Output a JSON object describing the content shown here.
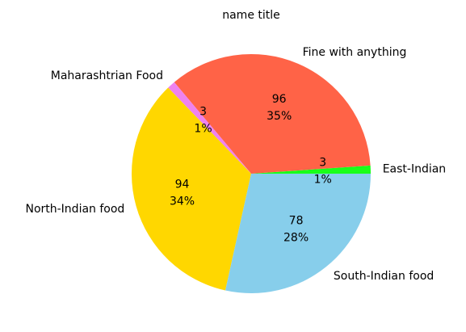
{
  "chart_data": {
    "type": "pie",
    "title": "name title",
    "slices": [
      {
        "label": "East-Indian",
        "count": 3,
        "percent_label": "1%",
        "color": "#19ff19"
      },
      {
        "label": "Fine with anything",
        "count": 96,
        "percent_label": "35%",
        "color": "#ff6347"
      },
      {
        "label": "Maharashtrian Food",
        "count": 3,
        "percent_label": "1%",
        "color": "#ee82ee"
      },
      {
        "label": "North-Indian food",
        "count": 94,
        "percent_label": "34%",
        "color": "#ffd700"
      },
      {
        "label": "South-Indian food",
        "count": 78,
        "percent_label": "28%",
        "color": "#87ceeb"
      }
    ]
  }
}
